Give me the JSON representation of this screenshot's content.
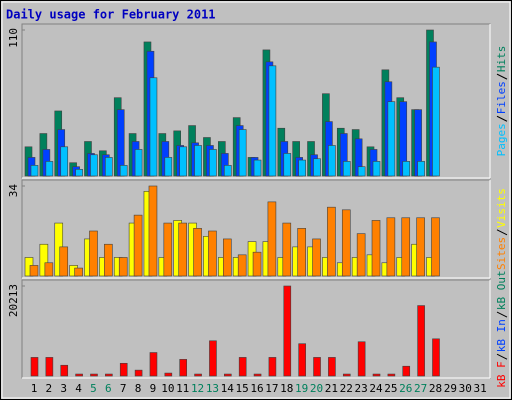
{
  "chart_data": [
    {
      "type": "bar",
      "title": "Daily usage for February 2011",
      "ylim": [
        0,
        110
      ],
      "yticks": [
        110
      ],
      "series": [
        {
          "name": "Pages",
          "color": "#00c0ff",
          "values": [
            8,
            11,
            22,
            5,
            16,
            14,
            8,
            20,
            74,
            14,
            22,
            23,
            20,
            8,
            35,
            12,
            83,
            17,
            12,
            13,
            23,
            11,
            7,
            11,
            56,
            11,
            11,
            82,
            null,
            null,
            null
          ]
        },
        {
          "name": "Files",
          "color": "#0040ff",
          "values": [
            14,
            20,
            35,
            7,
            17,
            16,
            50,
            26,
            94,
            26,
            23,
            25,
            23,
            17,
            38,
            14,
            86,
            26,
            14,
            16,
            41,
            32,
            28,
            20,
            71,
            56,
            50,
            101,
            null,
            null,
            null
          ]
        },
        {
          "name": "Hits",
          "color": "#00805c",
          "values": [
            22,
            32,
            49,
            10,
            26,
            19,
            59,
            32,
            101,
            32,
            34,
            38,
            29,
            26,
            44,
            14,
            95,
            36,
            26,
            26,
            62,
            36,
            35,
            22,
            80,
            59,
            50,
            110,
            null,
            null,
            null
          ]
        }
      ]
    },
    {
      "type": "bar",
      "ylim": [
        0,
        34
      ],
      "yticks": [
        34
      ],
      "series": [
        {
          "name": "Sites",
          "color": "#ff8000",
          "values": [
            4,
            5,
            11,
            3,
            17,
            12,
            7,
            23,
            34,
            20,
            20,
            18,
            17,
            14,
            8,
            9,
            28,
            20,
            18,
            14,
            26,
            25,
            16,
            21,
            22,
            22,
            22,
            22,
            null,
            null,
            null
          ]
        },
        {
          "name": "Visits",
          "color": "#ffff00",
          "values": [
            7,
            12,
            20,
            4,
            14,
            7,
            7,
            20,
            32,
            7,
            21,
            20,
            15,
            7,
            7,
            13,
            13,
            7,
            11,
            11,
            7,
            5,
            7,
            8,
            5,
            7,
            12,
            7,
            null,
            null,
            null
          ]
        }
      ]
    },
    {
      "type": "bar",
      "ylim": [
        0,
        20213
      ],
      "yticks": [
        20213
      ],
      "categories": [
        "1",
        "2",
        "3",
        "4",
        "5",
        "6",
        "7",
        "8",
        "9",
        "10",
        "11",
        "12",
        "13",
        "14",
        "15",
        "16",
        "17",
        "18",
        "19",
        "20",
        "21",
        "22",
        "23",
        "24",
        "25",
        "26",
        "27",
        "28",
        "29",
        "30",
        "31"
      ],
      "category_colors": [
        "#000000",
        "#000000",
        "#000000",
        "#000000",
        "#00805c",
        "#00805c",
        "#000000",
        "#000000",
        "#000000",
        "#000000",
        "#000000",
        "#00805c",
        "#00805c",
        "#000000",
        "#000000",
        "#000000",
        "#000000",
        "#000000",
        "#00805c",
        "#00805c",
        "#000000",
        "#000000",
        "#000000",
        "#000000",
        "#000000",
        "#00805c",
        "#00805c",
        "#000000",
        "#000000",
        "#000000",
        "#000000"
      ],
      "series": [
        {
          "name": "kB F",
          "color": "#ff0000",
          "values": [
            4174,
            4174,
            2417,
            440,
            440,
            440,
            2856,
            1318,
            5273,
            659,
            3735,
            440,
            7909,
            440,
            4174,
            440,
            4174,
            20213,
            7250,
            4174,
            4174,
            440,
            7690,
            440,
            440,
            2197,
            15818,
            8349,
            null,
            null,
            null
          ]
        },
        {
          "name": "kB In",
          "color": "#0040ff",
          "values": [
            null,
            null,
            null,
            null,
            null,
            null,
            null,
            null,
            null,
            null,
            null,
            null,
            null,
            null,
            null,
            null,
            null,
            null,
            null,
            null,
            null,
            null,
            null,
            null,
            null,
            null,
            null,
            null,
            null,
            null,
            null
          ]
        },
        {
          "name": "kB Out",
          "color": "#00805c",
          "values": [
            null,
            null,
            null,
            null,
            null,
            null,
            null,
            null,
            null,
            null,
            null,
            null,
            null,
            null,
            null,
            null,
            null,
            null,
            null,
            null,
            null,
            null,
            null,
            null,
            null,
            null,
            null,
            null,
            null,
            null,
            null
          ]
        }
      ]
    }
  ]
}
